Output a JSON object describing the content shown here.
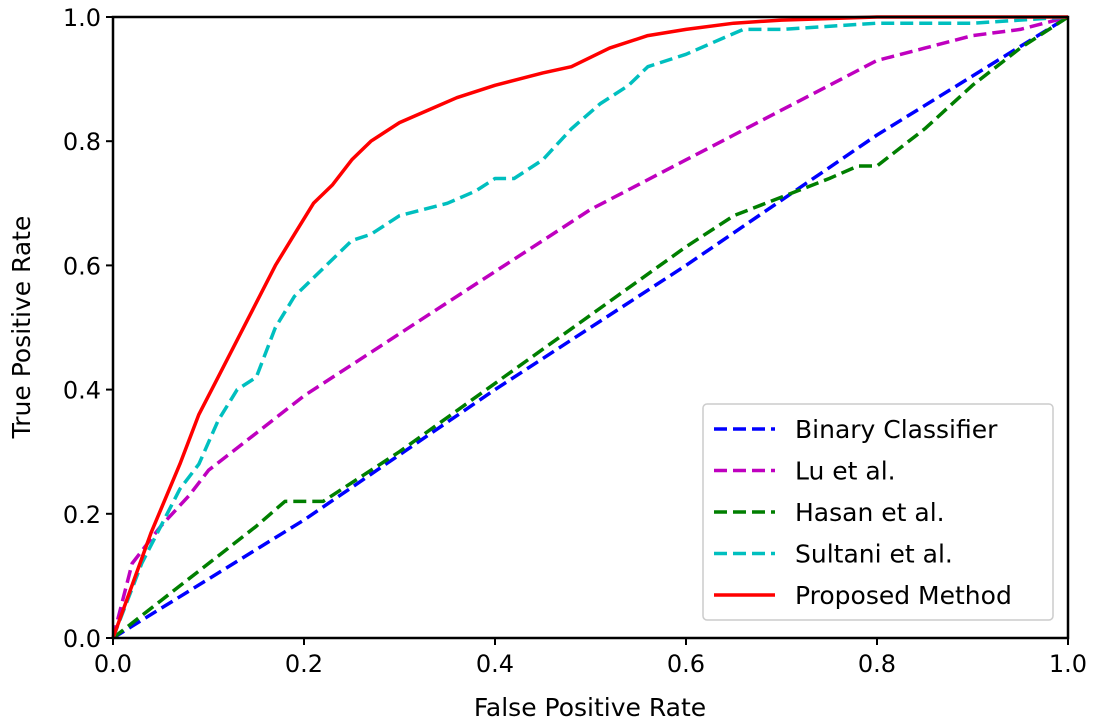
{
  "chart_data": {
    "type": "line",
    "xlabel": "False Positive Rate",
    "ylabel": "True Positive Rate",
    "xlim": [
      0.0,
      1.0
    ],
    "ylim": [
      0.0,
      1.0
    ],
    "xticks": [
      "0.0",
      "0.2",
      "0.4",
      "0.6",
      "0.8",
      "1.0"
    ],
    "yticks": [
      "0.0",
      "0.2",
      "0.4",
      "0.6",
      "0.8",
      "1.0"
    ],
    "grid": false,
    "legend_position": "lower-right",
    "series": [
      {
        "name": "Binary Classifier",
        "color": "#0000ff",
        "dash": "dashed",
        "x": [
          0.0,
          0.2,
          0.4,
          0.6,
          0.8,
          1.0
        ],
        "y": [
          0.0,
          0.19,
          0.4,
          0.6,
          0.81,
          1.0
        ]
      },
      {
        "name": "Lu et al.",
        "color": "#bf00bf",
        "dash": "dashed",
        "x": [
          0.0,
          0.02,
          0.05,
          0.08,
          0.1,
          0.15,
          0.2,
          0.25,
          0.3,
          0.4,
          0.45,
          0.5,
          0.55,
          0.6,
          0.65,
          0.7,
          0.75,
          0.8,
          0.85,
          0.9,
          0.95,
          1.0
        ],
        "y": [
          0.0,
          0.12,
          0.18,
          0.23,
          0.27,
          0.33,
          0.39,
          0.44,
          0.49,
          0.59,
          0.64,
          0.69,
          0.73,
          0.77,
          0.81,
          0.85,
          0.89,
          0.93,
          0.95,
          0.97,
          0.98,
          1.0
        ]
      },
      {
        "name": "Hasan et al.",
        "color": "#007f00",
        "dash": "dashed",
        "x": [
          0.0,
          0.05,
          0.1,
          0.15,
          0.18,
          0.22,
          0.3,
          0.4,
          0.5,
          0.6,
          0.65,
          0.7,
          0.75,
          0.78,
          0.8,
          0.85,
          0.9,
          0.95,
          1.0
        ],
        "y": [
          0.0,
          0.06,
          0.12,
          0.18,
          0.22,
          0.22,
          0.3,
          0.41,
          0.52,
          0.63,
          0.68,
          0.71,
          0.74,
          0.76,
          0.76,
          0.82,
          0.89,
          0.95,
          1.0
        ]
      },
      {
        "name": "Sultani et al.",
        "color": "#00bfbf",
        "dash": "dashed",
        "x": [
          0.0,
          0.03,
          0.05,
          0.07,
          0.09,
          0.11,
          0.13,
          0.15,
          0.17,
          0.19,
          0.21,
          0.23,
          0.25,
          0.27,
          0.3,
          0.35,
          0.38,
          0.4,
          0.42,
          0.45,
          0.48,
          0.51,
          0.54,
          0.56,
          0.6,
          0.63,
          0.66,
          0.7,
          0.8,
          0.9,
          1.0
        ],
        "y": [
          0.0,
          0.12,
          0.18,
          0.24,
          0.28,
          0.35,
          0.4,
          0.42,
          0.5,
          0.55,
          0.58,
          0.61,
          0.64,
          0.65,
          0.68,
          0.7,
          0.72,
          0.74,
          0.74,
          0.77,
          0.82,
          0.86,
          0.89,
          0.92,
          0.94,
          0.96,
          0.98,
          0.98,
          0.99,
          0.99,
          1.0
        ]
      },
      {
        "name": "Proposed Method",
        "color": "#ff0000",
        "dash": "solid",
        "x": [
          0.0,
          0.04,
          0.07,
          0.09,
          0.11,
          0.13,
          0.15,
          0.17,
          0.19,
          0.21,
          0.23,
          0.25,
          0.27,
          0.3,
          0.33,
          0.36,
          0.4,
          0.45,
          0.48,
          0.52,
          0.56,
          0.6,
          0.65,
          0.7,
          0.8,
          0.9,
          1.0
        ],
        "y": [
          0.0,
          0.17,
          0.28,
          0.36,
          0.42,
          0.48,
          0.54,
          0.6,
          0.65,
          0.7,
          0.73,
          0.77,
          0.8,
          0.83,
          0.85,
          0.87,
          0.89,
          0.91,
          0.92,
          0.95,
          0.97,
          0.98,
          0.99,
          0.995,
          1.0,
          1.0,
          1.0
        ]
      }
    ]
  }
}
